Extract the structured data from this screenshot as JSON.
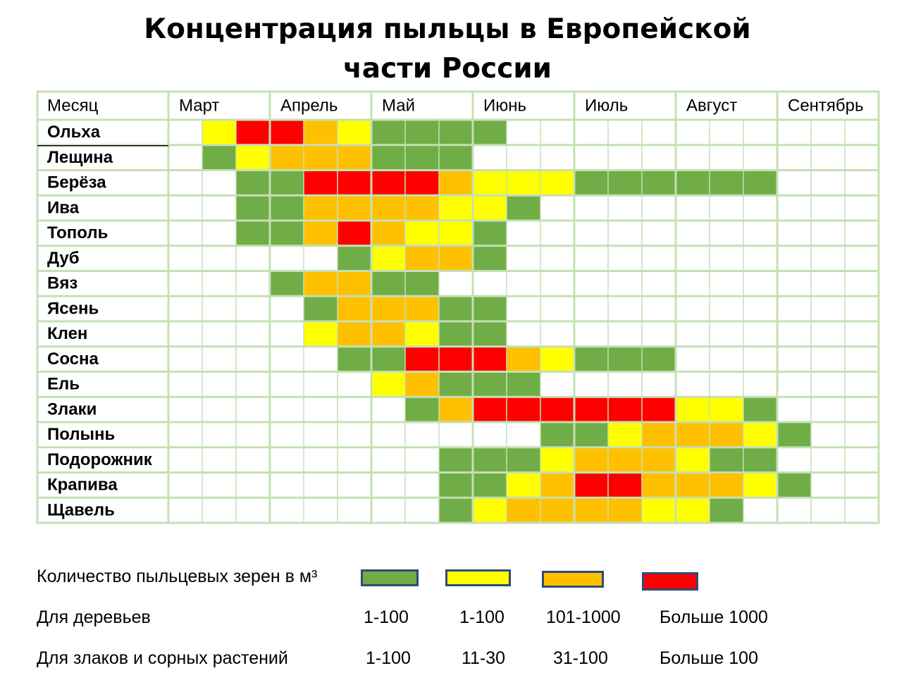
{
  "title_line1": "Концентрация пыльцы в Европейской",
  "title_line2": "части России",
  "colors": {
    "green": "#70ad47",
    "yellow": "#ffff00",
    "orange": "#ffc000",
    "red": "#ff0000",
    "grid": "#c5e0b4",
    "legend_border": "#2f4a78"
  },
  "chart_data": {
    "type": "heatmap",
    "title": "Концентрация пыльцы в Европейской части России",
    "header_label": "Месяц",
    "months": [
      "Март",
      "Апрель",
      "Май",
      "Июнь",
      "Июль",
      "Август",
      "Сентябрь"
    ],
    "periods_per_month": 3,
    "level_codes": {
      "0": "нет",
      "1": "зелёный",
      "2": "жёлтый",
      "3": "оранжевый",
      "4": "красный"
    },
    "rows": [
      {
        "plant": "Ольха",
        "levels": [
          0,
          2,
          4,
          4,
          3,
          2,
          1,
          1,
          1,
          1,
          0,
          0,
          0,
          0,
          0,
          0,
          0,
          0,
          0,
          0,
          0
        ]
      },
      {
        "plant": "Лещина",
        "levels": [
          0,
          1,
          2,
          3,
          3,
          3,
          1,
          1,
          1,
          0,
          0,
          0,
          0,
          0,
          0,
          0,
          0,
          0,
          0,
          0,
          0
        ]
      },
      {
        "plant": "Берёза",
        "levels": [
          0,
          0,
          1,
          1,
          4,
          4,
          4,
          4,
          3,
          2,
          2,
          2,
          1,
          1,
          1,
          1,
          1,
          1,
          0,
          0,
          0
        ]
      },
      {
        "plant": "Ива",
        "levels": [
          0,
          0,
          1,
          1,
          3,
          3,
          3,
          3,
          2,
          2,
          1,
          0,
          0,
          0,
          0,
          0,
          0,
          0,
          0,
          0,
          0
        ]
      },
      {
        "plant": "Тополь",
        "levels": [
          0,
          0,
          1,
          1,
          3,
          4,
          3,
          2,
          2,
          1,
          0,
          0,
          0,
          0,
          0,
          0,
          0,
          0,
          0,
          0,
          0
        ]
      },
      {
        "plant": "Дуб",
        "levels": [
          0,
          0,
          0,
          0,
          0,
          1,
          2,
          3,
          3,
          1,
          0,
          0,
          0,
          0,
          0,
          0,
          0,
          0,
          0,
          0,
          0
        ]
      },
      {
        "plant": "Вяз",
        "levels": [
          0,
          0,
          0,
          1,
          3,
          3,
          1,
          1,
          0,
          0,
          0,
          0,
          0,
          0,
          0,
          0,
          0,
          0,
          0,
          0,
          0
        ]
      },
      {
        "plant": "Ясень",
        "levels": [
          0,
          0,
          0,
          0,
          1,
          3,
          3,
          3,
          1,
          1,
          0,
          0,
          0,
          0,
          0,
          0,
          0,
          0,
          0,
          0,
          0
        ]
      },
      {
        "plant": "Клен",
        "levels": [
          0,
          0,
          0,
          0,
          2,
          3,
          3,
          2,
          1,
          1,
          0,
          0,
          0,
          0,
          0,
          0,
          0,
          0,
          0,
          0,
          0
        ]
      },
      {
        "plant": "Сосна",
        "levels": [
          0,
          0,
          0,
          0,
          0,
          1,
          1,
          4,
          4,
          4,
          3,
          2,
          1,
          1,
          1,
          0,
          0,
          0,
          0,
          0,
          0
        ]
      },
      {
        "plant": "Ель",
        "levels": [
          0,
          0,
          0,
          0,
          0,
          0,
          2,
          3,
          1,
          1,
          1,
          0,
          0,
          0,
          0,
          0,
          0,
          0,
          0,
          0,
          0
        ]
      },
      {
        "plant": "Злаки",
        "levels": [
          0,
          0,
          0,
          0,
          0,
          0,
          0,
          1,
          3,
          4,
          4,
          4,
          4,
          4,
          4,
          2,
          2,
          1,
          0,
          0,
          0
        ]
      },
      {
        "plant": "Полынь",
        "levels": [
          0,
          0,
          0,
          0,
          0,
          0,
          0,
          0,
          0,
          0,
          0,
          1,
          1,
          2,
          3,
          3,
          3,
          2,
          1,
          0,
          0
        ]
      },
      {
        "plant": "Подорожник",
        "levels": [
          0,
          0,
          0,
          0,
          0,
          0,
          0,
          0,
          1,
          1,
          1,
          2,
          3,
          3,
          3,
          2,
          1,
          1,
          0,
          0,
          0
        ]
      },
      {
        "plant": "Крапива",
        "levels": [
          0,
          0,
          0,
          0,
          0,
          0,
          0,
          0,
          1,
          1,
          2,
          3,
          4,
          4,
          3,
          3,
          3,
          2,
          1,
          0,
          0
        ]
      },
      {
        "plant": "Щавель",
        "levels": [
          0,
          0,
          0,
          0,
          0,
          0,
          0,
          0,
          1,
          2,
          3,
          3,
          3,
          3,
          2,
          2,
          1,
          0,
          0,
          0,
          0
        ]
      }
    ]
  },
  "legend": {
    "header": "Количество пыльцевых зерен в м³",
    "trees_label": "Для деревьев",
    "grasses_label": "Для злаков и сорных растений",
    "trees_values": [
      "1-100",
      "1-100",
      "101-1000",
      "Больше 1000"
    ],
    "grasses_values": [
      "1-100",
      "11-30",
      "31-100",
      "Больше 100"
    ]
  }
}
